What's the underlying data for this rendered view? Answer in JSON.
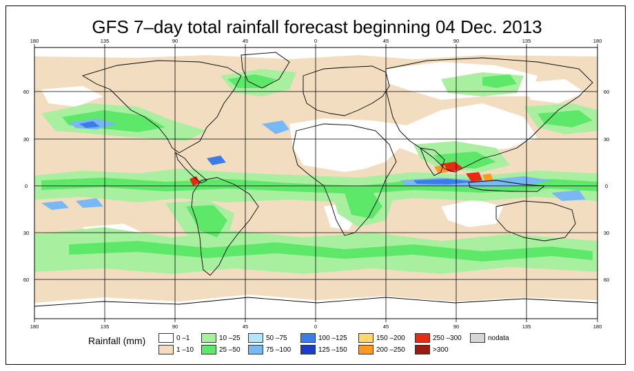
{
  "title": "GFS 7–day total rainfall forecast beginning 04 Dec. 2013",
  "top_lon_labels": [
    "180",
    "135",
    "90",
    "45",
    "0",
    "45",
    "90",
    "135",
    "180"
  ],
  "bottom_lon_labels": [
    "180",
    "135",
    "90",
    "45",
    "0",
    "45",
    "90",
    "135",
    "180"
  ],
  "left_lat_labels": [
    "60",
    "30",
    "0",
    "30",
    "60"
  ],
  "right_lat_labels": [
    "60",
    "30",
    "0",
    "30",
    "60"
  ],
  "legend": {
    "title": "Rainfall (mm)",
    "items": [
      {
        "label": "0 –1",
        "color": "#ffffff"
      },
      {
        "label": "1 –10",
        "color": "#f2ddc0"
      },
      {
        "label": "10 –25",
        "color": "#a8f0a0"
      },
      {
        "label": "25 –50",
        "color": "#5ee86a"
      },
      {
        "label": "50 –75",
        "color": "#b4e6fa"
      },
      {
        "label": "75 –100",
        "color": "#78b8f4"
      },
      {
        "label": "100 –125",
        "color": "#3c7ce6"
      },
      {
        "label": "125 –150",
        "color": "#1a3cc8"
      },
      {
        "label": "150 –200",
        "color": "#ffd86a"
      },
      {
        "label": "200 –250",
        "color": "#ff9a1e"
      },
      {
        "label": "250 –300",
        "color": "#e82a10"
      },
      {
        "label": ">300",
        "color": "#9a1a14"
      },
      {
        "label": "nodata",
        "color": "#d6d6d6"
      }
    ]
  }
}
